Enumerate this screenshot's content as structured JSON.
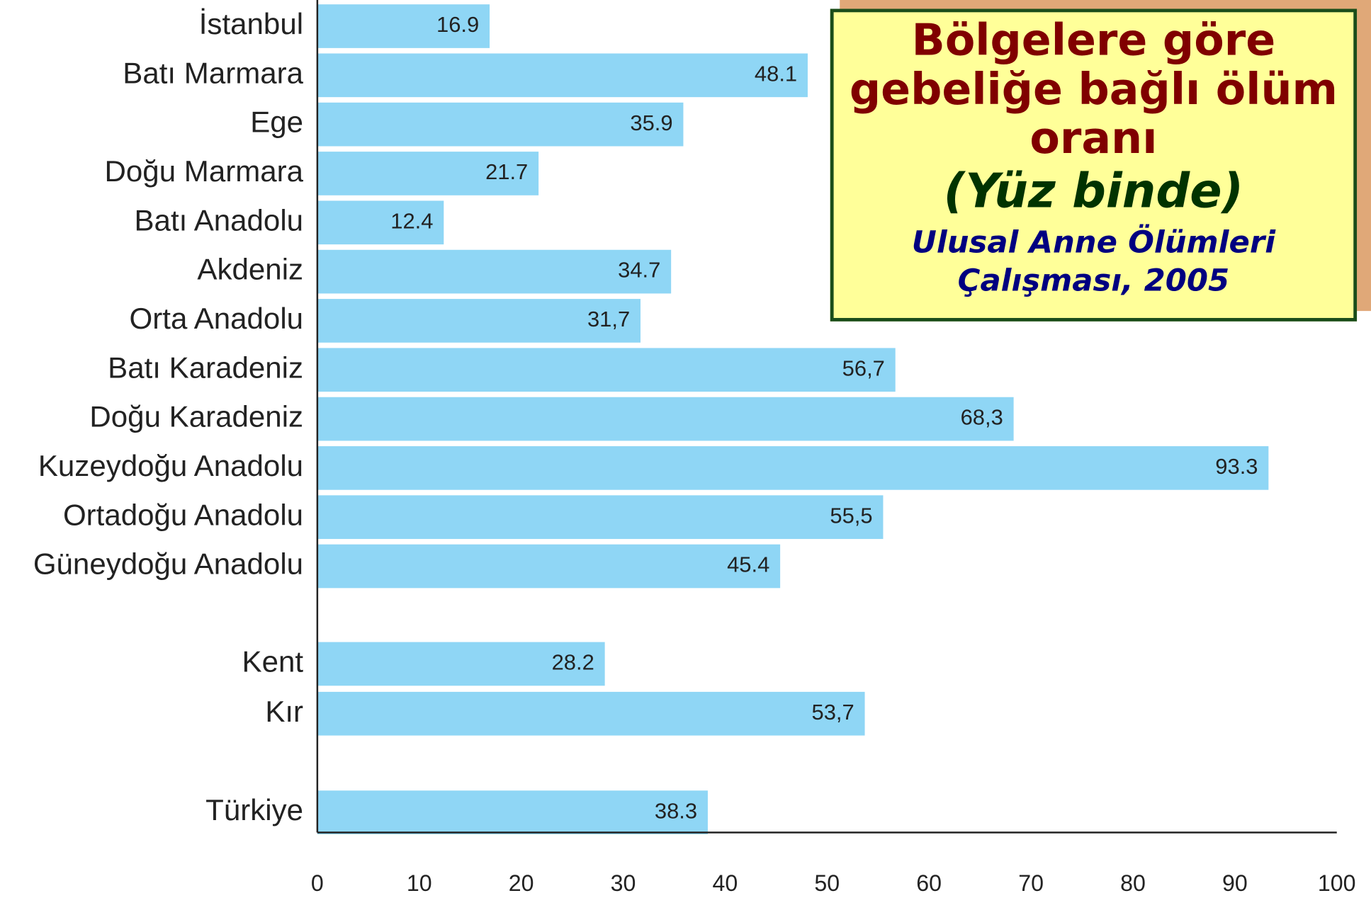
{
  "chart_data": {
    "type": "barh",
    "title": "Bölgelere göre gebeliğe bağlı ölüm oranı",
    "subtitle": "(Yüz binde)",
    "source": "Ulusal Anne Ölümleri Çalışması, 2005",
    "categories": [
      "İstanbul",
      "Batı Marmara",
      "Ege",
      "Doğu Marmara",
      "Batı Anadolu",
      "Akdeniz",
      "Orta Anadolu",
      "Batı Karadeniz",
      "Doğu Karadeniz",
      "Kuzeydoğu Anadolu",
      "Ortadoğu Anadolu",
      "Güneydoğu Anadolu",
      "Kent",
      "Kır",
      "Türkiye"
    ],
    "values": [
      16.9,
      48.1,
      35.9,
      21.7,
      12.4,
      34.7,
      31.7,
      56.7,
      68.3,
      93.3,
      55.5,
      45.4,
      28.2,
      53.7,
      38.3
    ],
    "value_labels": [
      "16.9",
      "48.1",
      "35.9",
      "21.7",
      "12.4",
      "34.7",
      "31,7",
      "56,7",
      "68,3",
      "93.3",
      "55,5",
      "45.4",
      "28.2",
      "53,7",
      "38.3"
    ],
    "color": "#8fd6f5",
    "xlim": [
      0,
      100
    ],
    "xticks": [
      0,
      10,
      20,
      30,
      40,
      50,
      60,
      70,
      80,
      90,
      100
    ]
  }
}
